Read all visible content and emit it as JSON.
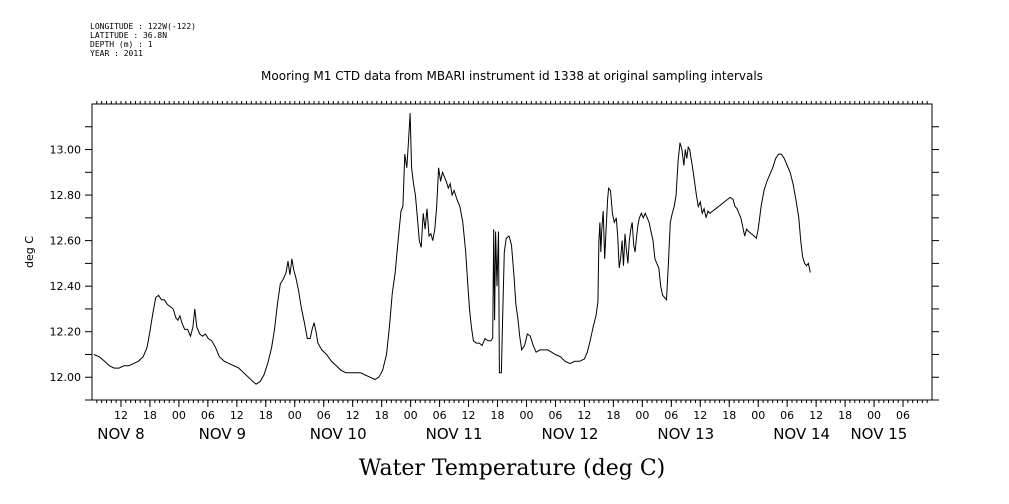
{
  "meta": {
    "longitude": "LONGITUDE : 122W(-122)",
    "latitude": "LATITUDE : 36.8N",
    "depth": "DEPTH (m) : 1",
    "year": "YEAR : 2011"
  },
  "chart_data": {
    "type": "line",
    "title": "Mooring M1 CTD data from MBARI instrument id 1338 at original sampling intervals",
    "xlabel": "Water Temperature (deg C)",
    "ylabel": "deg C",
    "ylim": [
      11.9,
      13.2
    ],
    "xlim_hours": [
      0,
      174
    ],
    "y_ticks": [
      "12.00",
      "12.20",
      "12.40",
      "12.60",
      "12.80",
      "13.00"
    ],
    "y_tick_values": [
      12.0,
      12.2,
      12.4,
      12.6,
      12.8,
      13.0
    ],
    "hour_ticks": [
      {
        "label": "12",
        "h": 6
      },
      {
        "label": "18",
        "h": 12
      },
      {
        "label": "00",
        "h": 18
      },
      {
        "label": "06",
        "h": 24
      },
      {
        "label": "12",
        "h": 30
      },
      {
        "label": "18",
        "h": 36
      },
      {
        "label": "00",
        "h": 42
      },
      {
        "label": "06",
        "h": 48
      },
      {
        "label": "12",
        "h": 54
      },
      {
        "label": "18",
        "h": 60
      },
      {
        "label": "00",
        "h": 66
      },
      {
        "label": "06",
        "h": 72
      },
      {
        "label": "12",
        "h": 78
      },
      {
        "label": "18",
        "h": 84
      },
      {
        "label": "00",
        "h": 90
      },
      {
        "label": "06",
        "h": 96
      },
      {
        "label": "12",
        "h": 102
      },
      {
        "label": "18",
        "h": 108
      },
      {
        "label": "00",
        "h": 114
      },
      {
        "label": "06",
        "h": 120
      },
      {
        "label": "12",
        "h": 126
      },
      {
        "label": "18",
        "h": 132
      },
      {
        "label": "00",
        "h": 138
      },
      {
        "label": "06",
        "h": 144
      },
      {
        "label": "12",
        "h": 150
      },
      {
        "label": "18",
        "h": 156
      },
      {
        "label": "00",
        "h": 162
      },
      {
        "label": "06",
        "h": 168
      }
    ],
    "day_labels": [
      {
        "label": "NOV  8",
        "h": 6
      },
      {
        "label": "NOV  9",
        "h": 27
      },
      {
        "label": "NOV 10",
        "h": 51
      },
      {
        "label": "NOV 11",
        "h": 75
      },
      {
        "label": "NOV 12",
        "h": 99
      },
      {
        "label": "NOV 13",
        "h": 123
      },
      {
        "label": "NOV 14",
        "h": 147
      },
      {
        "label": "NOV 15",
        "h": 163
      }
    ],
    "series": [
      {
        "points": [
          [
            0.4,
            12.1
          ],
          [
            1.5,
            12.09
          ],
          [
            2.6,
            12.07
          ],
          [
            3.6,
            12.05
          ],
          [
            4.6,
            12.04
          ],
          [
            5.6,
            12.04
          ],
          [
            6.6,
            12.05
          ],
          [
            7.6,
            12.05
          ],
          [
            8.6,
            12.06
          ],
          [
            9.6,
            12.07
          ],
          [
            10.6,
            12.09
          ],
          [
            11.4,
            12.13
          ],
          [
            12.0,
            12.2
          ],
          [
            12.6,
            12.28
          ],
          [
            13.2,
            12.35
          ],
          [
            13.8,
            12.36
          ],
          [
            14.4,
            12.34
          ],
          [
            15.0,
            12.34
          ],
          [
            15.6,
            12.32
          ],
          [
            16.2,
            12.31
          ],
          [
            16.8,
            12.3
          ],
          [
            17.4,
            12.26
          ],
          [
            17.8,
            12.25
          ],
          [
            18.2,
            12.27
          ],
          [
            18.6,
            12.24
          ],
          [
            19.2,
            12.21
          ],
          [
            19.8,
            12.21
          ],
          [
            20.4,
            12.18
          ],
          [
            20.9,
            12.22
          ],
          [
            21.3,
            12.3
          ],
          [
            21.7,
            12.22
          ],
          [
            22.3,
            12.19
          ],
          [
            22.9,
            12.18
          ],
          [
            23.5,
            12.19
          ],
          [
            24.1,
            12.17
          ],
          [
            24.8,
            12.16
          ],
          [
            25.6,
            12.13
          ],
          [
            26.4,
            12.09
          ],
          [
            27.4,
            12.07
          ],
          [
            28.4,
            12.06
          ],
          [
            29.4,
            12.05
          ],
          [
            30.4,
            12.04
          ],
          [
            31.4,
            12.02
          ],
          [
            32.4,
            12.0
          ],
          [
            33.4,
            11.98
          ],
          [
            34.0,
            11.97
          ],
          [
            34.8,
            11.98
          ],
          [
            35.6,
            12.01
          ],
          [
            36.4,
            12.06
          ],
          [
            37.2,
            12.13
          ],
          [
            37.8,
            12.21
          ],
          [
            38.4,
            12.32
          ],
          [
            39.0,
            12.41
          ],
          [
            39.6,
            12.43
          ],
          [
            40.2,
            12.46
          ],
          [
            40.6,
            12.51
          ],
          [
            41.0,
            12.45
          ],
          [
            41.4,
            12.52
          ],
          [
            41.8,
            12.47
          ],
          [
            42.2,
            12.44
          ],
          [
            42.8,
            12.38
          ],
          [
            43.4,
            12.3
          ],
          [
            44.0,
            12.24
          ],
          [
            44.6,
            12.17
          ],
          [
            45.2,
            12.17
          ],
          [
            45.6,
            12.21
          ],
          [
            46.0,
            12.24
          ],
          [
            46.4,
            12.2
          ],
          [
            46.8,
            12.15
          ],
          [
            47.6,
            12.12
          ],
          [
            48.6,
            12.1
          ],
          [
            49.6,
            12.07
          ],
          [
            50.6,
            12.05
          ],
          [
            51.6,
            12.03
          ],
          [
            52.6,
            12.02
          ],
          [
            53.6,
            12.02
          ],
          [
            54.6,
            12.02
          ],
          [
            55.6,
            12.02
          ],
          [
            56.6,
            12.01
          ],
          [
            57.6,
            12.0
          ],
          [
            58.6,
            11.99
          ],
          [
            59.4,
            12.0
          ],
          [
            60.2,
            12.03
          ],
          [
            61.0,
            12.1
          ],
          [
            61.6,
            12.22
          ],
          [
            62.2,
            12.37
          ],
          [
            62.8,
            12.46
          ],
          [
            63.4,
            12.6
          ],
          [
            64.0,
            12.73
          ],
          [
            64.4,
            12.75
          ],
          [
            64.8,
            12.98
          ],
          [
            65.2,
            12.92
          ],
          [
            65.6,
            13.05
          ],
          [
            65.9,
            13.16
          ],
          [
            66.2,
            12.92
          ],
          [
            66.6,
            12.85
          ],
          [
            67.0,
            12.8
          ],
          [
            67.4,
            12.7
          ],
          [
            67.8,
            12.6
          ],
          [
            68.2,
            12.57
          ],
          [
            68.6,
            12.72
          ],
          [
            69.0,
            12.65
          ],
          [
            69.4,
            12.74
          ],
          [
            69.8,
            12.62
          ],
          [
            70.2,
            12.63
          ],
          [
            70.6,
            12.6
          ],
          [
            71.0,
            12.65
          ],
          [
            71.4,
            12.75
          ],
          [
            71.8,
            12.92
          ],
          [
            72.2,
            12.86
          ],
          [
            72.6,
            12.9
          ],
          [
            73.0,
            12.88
          ],
          [
            73.4,
            12.86
          ],
          [
            73.8,
            12.83
          ],
          [
            74.2,
            12.85
          ],
          [
            74.6,
            12.8
          ],
          [
            75.0,
            12.82
          ],
          [
            75.6,
            12.78
          ],
          [
            76.2,
            12.75
          ],
          [
            76.8,
            12.68
          ],
          [
            77.4,
            12.55
          ],
          [
            77.8,
            12.42
          ],
          [
            78.2,
            12.3
          ],
          [
            78.6,
            12.22
          ],
          [
            79.0,
            12.16
          ],
          [
            79.6,
            12.15
          ],
          [
            80.2,
            12.15
          ],
          [
            80.8,
            12.14
          ],
          [
            81.4,
            12.17
          ],
          [
            82.0,
            12.16
          ],
          [
            82.6,
            12.16
          ],
          [
            83.0,
            12.17
          ],
          [
            83.2,
            12.65
          ],
          [
            83.4,
            12.25
          ],
          [
            83.6,
            12.64
          ],
          [
            83.9,
            12.4
          ],
          [
            84.2,
            12.64
          ],
          [
            84.4,
            12.02
          ],
          [
            84.8,
            12.02
          ],
          [
            85.0,
            12.2
          ],
          [
            85.4,
            12.55
          ],
          [
            85.8,
            12.61
          ],
          [
            86.4,
            12.62
          ],
          [
            86.9,
            12.58
          ],
          [
            87.4,
            12.45
          ],
          [
            87.8,
            12.32
          ],
          [
            88.2,
            12.26
          ],
          [
            88.6,
            12.18
          ],
          [
            89.0,
            12.12
          ],
          [
            89.6,
            12.14
          ],
          [
            90.2,
            12.19
          ],
          [
            90.8,
            12.18
          ],
          [
            91.4,
            12.14
          ],
          [
            92.0,
            12.11
          ],
          [
            92.8,
            12.12
          ],
          [
            93.6,
            12.12
          ],
          [
            94.4,
            12.12
          ],
          [
            95.2,
            12.11
          ],
          [
            96.0,
            12.1
          ],
          [
            97.0,
            12.09
          ],
          [
            98.0,
            12.07
          ],
          [
            99.0,
            12.06
          ],
          [
            100.0,
            12.07
          ],
          [
            101.0,
            12.07
          ],
          [
            102.0,
            12.08
          ],
          [
            102.6,
            12.11
          ],
          [
            103.2,
            12.16
          ],
          [
            103.8,
            12.22
          ],
          [
            104.4,
            12.27
          ],
          [
            104.8,
            12.33
          ],
          [
            105.0,
            12.6
          ],
          [
            105.2,
            12.68
          ],
          [
            105.4,
            12.55
          ],
          [
            105.6,
            12.65
          ],
          [
            105.9,
            12.73
          ],
          [
            106.2,
            12.52
          ],
          [
            106.5,
            12.65
          ],
          [
            106.8,
            12.78
          ],
          [
            107.0,
            12.83
          ],
          [
            107.4,
            12.82
          ],
          [
            107.8,
            12.72
          ],
          [
            108.2,
            12.68
          ],
          [
            108.6,
            12.7
          ],
          [
            108.9,
            12.62
          ],
          [
            109.2,
            12.48
          ],
          [
            109.5,
            12.52
          ],
          [
            109.8,
            12.6
          ],
          [
            110.1,
            12.49
          ],
          [
            110.4,
            12.63
          ],
          [
            110.7,
            12.56
          ],
          [
            111.0,
            12.5
          ],
          [
            111.3,
            12.6
          ],
          [
            111.6,
            12.65
          ],
          [
            111.9,
            12.68
          ],
          [
            112.2,
            12.58
          ],
          [
            112.5,
            12.55
          ],
          [
            112.8,
            12.62
          ],
          [
            113.1,
            12.67
          ],
          [
            113.4,
            12.7
          ],
          [
            113.8,
            12.72
          ],
          [
            114.2,
            12.7
          ],
          [
            114.6,
            12.72
          ],
          [
            115.0,
            12.7
          ],
          [
            115.4,
            12.68
          ],
          [
            115.8,
            12.64
          ],
          [
            116.2,
            12.6
          ],
          [
            116.6,
            12.52
          ],
          [
            117.0,
            12.5
          ],
          [
            117.4,
            12.48
          ],
          [
            117.8,
            12.4
          ],
          [
            118.2,
            12.36
          ],
          [
            118.6,
            12.35
          ],
          [
            119.0,
            12.34
          ],
          [
            119.4,
            12.5
          ],
          [
            119.8,
            12.68
          ],
          [
            120.2,
            12.72
          ],
          [
            120.6,
            12.75
          ],
          [
            121.0,
            12.8
          ],
          [
            121.4,
            12.95
          ],
          [
            121.8,
            13.03
          ],
          [
            122.2,
            13.0
          ],
          [
            122.6,
            12.93
          ],
          [
            122.9,
            13.0
          ],
          [
            123.2,
            12.96
          ],
          [
            123.5,
            13.01
          ],
          [
            123.8,
            13.0
          ],
          [
            124.1,
            12.96
          ],
          [
            124.4,
            12.92
          ],
          [
            124.8,
            12.86
          ],
          [
            125.2,
            12.8
          ],
          [
            125.6,
            12.75
          ],
          [
            126.0,
            12.77
          ],
          [
            126.4,
            12.72
          ],
          [
            126.8,
            12.74
          ],
          [
            127.2,
            12.7
          ],
          [
            127.6,
            12.73
          ],
          [
            128.0,
            12.72
          ],
          [
            128.6,
            12.73
          ],
          [
            129.2,
            12.74
          ],
          [
            129.8,
            12.75
          ],
          [
            130.4,
            12.76
          ],
          [
            131.0,
            12.77
          ],
          [
            131.6,
            12.78
          ],
          [
            132.2,
            12.79
          ],
          [
            132.8,
            12.78
          ],
          [
            133.2,
            12.75
          ],
          [
            133.6,
            12.74
          ],
          [
            134.0,
            12.72
          ],
          [
            134.4,
            12.7
          ],
          [
            134.8,
            12.66
          ],
          [
            135.2,
            12.62
          ],
          [
            135.6,
            12.65
          ],
          [
            136.0,
            12.64
          ],
          [
            136.6,
            12.63
          ],
          [
            137.2,
            12.62
          ],
          [
            137.6,
            12.61
          ],
          [
            138.0,
            12.65
          ],
          [
            138.6,
            12.75
          ],
          [
            139.2,
            12.82
          ],
          [
            139.8,
            12.86
          ],
          [
            140.4,
            12.89
          ],
          [
            141.0,
            12.92
          ],
          [
            141.6,
            12.96
          ],
          [
            142.2,
            12.98
          ],
          [
            142.8,
            12.98
          ],
          [
            143.4,
            12.96
          ],
          [
            144.0,
            12.93
          ],
          [
            144.6,
            12.9
          ],
          [
            145.2,
            12.85
          ],
          [
            145.8,
            12.78
          ],
          [
            146.4,
            12.7
          ],
          [
            146.8,
            12.6
          ],
          [
            147.2,
            12.53
          ],
          [
            147.6,
            12.5
          ],
          [
            148.0,
            12.49
          ],
          [
            148.4,
            12.5
          ],
          [
            148.8,
            12.46
          ]
        ]
      }
    ]
  }
}
